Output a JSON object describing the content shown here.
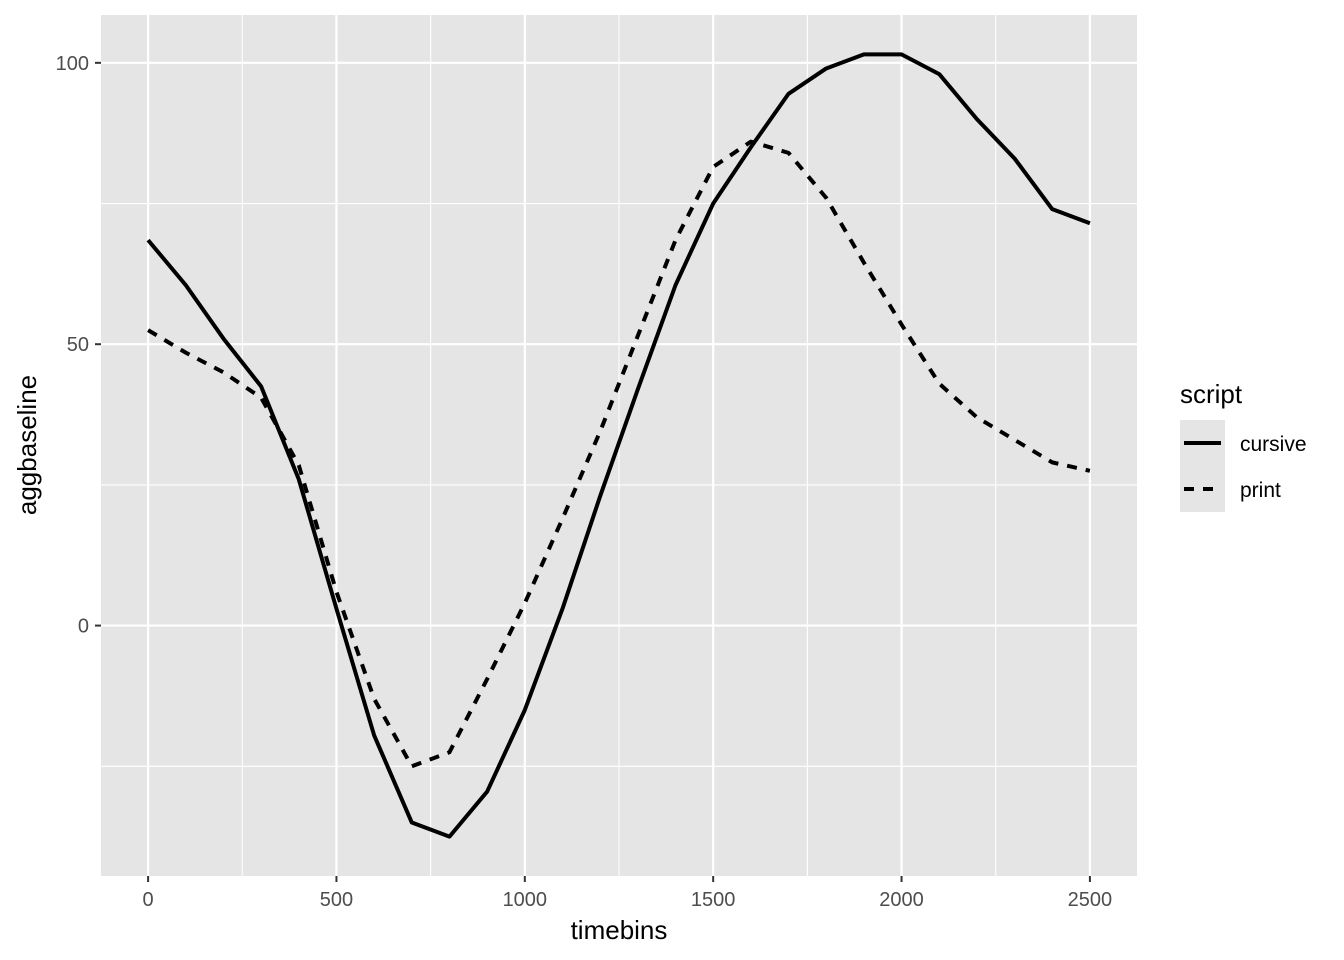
{
  "chart_data": {
    "type": "line",
    "xlabel": "timebins",
    "ylabel": "aggbaseline",
    "xlim": [
      -125,
      2625
    ],
    "ylim": [
      -44.5,
      108.5
    ],
    "x_ticks": [
      0,
      500,
      1000,
      1500,
      2000,
      2500
    ],
    "x_tick_labels": [
      "0",
      "500",
      "1000",
      "1500",
      "2000",
      "2500"
    ],
    "y_ticks": [
      0,
      50,
      100
    ],
    "y_tick_labels": [
      "0",
      "50",
      "100"
    ],
    "grid": true,
    "panel_background": "#e5e5e5",
    "grid_color": "#ffffff",
    "line_color": "#000000",
    "legend": {
      "title": "script",
      "position": "right",
      "entries": [
        {
          "label": "cursive",
          "linetype": "solid"
        },
        {
          "label": "print",
          "linetype": "dashed"
        }
      ]
    },
    "x": [
      0,
      100,
      200,
      300,
      400,
      500,
      600,
      700,
      800,
      900,
      1000,
      1100,
      1200,
      1300,
      1400,
      1500,
      1600,
      1700,
      1800,
      1900,
      2000,
      2100,
      2200,
      2300,
      2400,
      2500
    ],
    "series": [
      {
        "name": "cursive",
        "linetype": "solid",
        "values": [
          68.5,
          60.5,
          51,
          42.5,
          26,
          3,
          -19.5,
          -35,
          -37.5,
          -29.5,
          -15,
          3,
          23,
          42,
          60.5,
          75,
          85,
          94.5,
          99,
          101.5,
          101.5,
          98,
          90,
          83,
          74,
          71.5
        ]
      },
      {
        "name": "print",
        "linetype": "dashed",
        "values": [
          52.5,
          48.5,
          45,
          40.5,
          28.5,
          6,
          -13,
          -25,
          -22.5,
          -9.5,
          4,
          19,
          34.5,
          51.5,
          68.5,
          81.5,
          86,
          84,
          76,
          64.5,
          53.5,
          43,
          37,
          33,
          29,
          27.5
        ]
      }
    ]
  }
}
